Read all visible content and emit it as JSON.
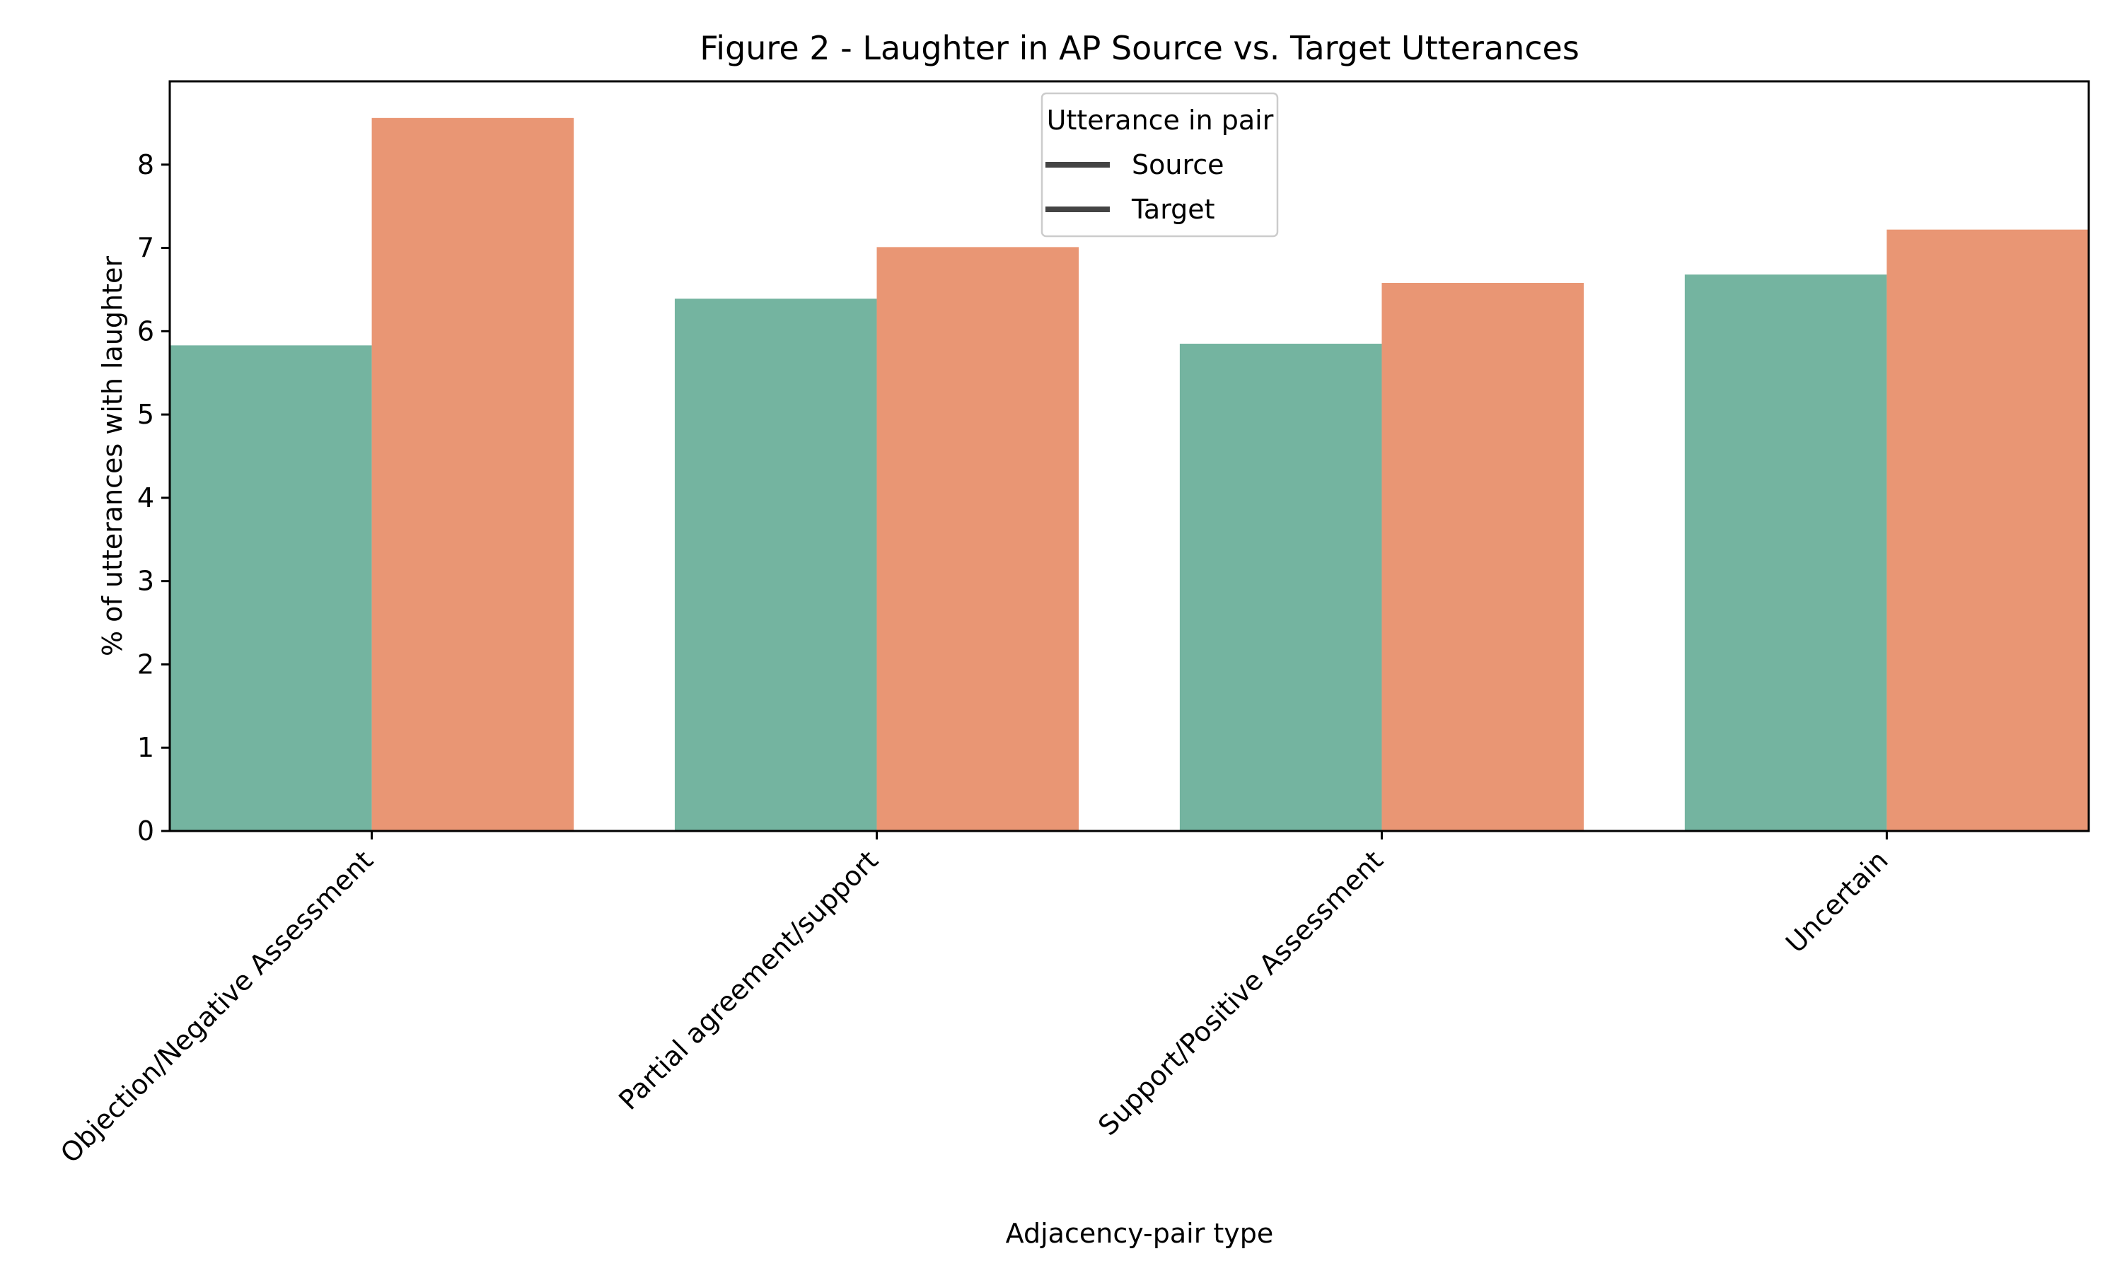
{
  "chart_data": {
    "type": "bar",
    "title": "Figure 2 - Laughter in AP Source vs. Target Utterances",
    "xlabel": "Adjacency-pair type",
    "ylabel": "% of utterances with laughter",
    "categories": [
      "Objection/Negative Assessment",
      "Partial agreement/support",
      "Support/Positive Assessment",
      "Uncertain"
    ],
    "series": [
      {
        "name": "Source",
        "color": "#74b4a0",
        "values": [
          5.83,
          6.39,
          5.85,
          6.68
        ]
      },
      {
        "name": "Target",
        "color": "#e99674",
        "values": [
          8.56,
          7.01,
          6.58,
          7.22
        ]
      }
    ],
    "ylim": [
      0,
      9
    ],
    "yticks": [
      0,
      1,
      2,
      3,
      4,
      5,
      6,
      7,
      8
    ],
    "grid": false,
    "legend": {
      "title": "Utterance in pair",
      "placement": "top-center",
      "entries": [
        "Source",
        "Target"
      ],
      "handle_color": "#444444"
    }
  }
}
